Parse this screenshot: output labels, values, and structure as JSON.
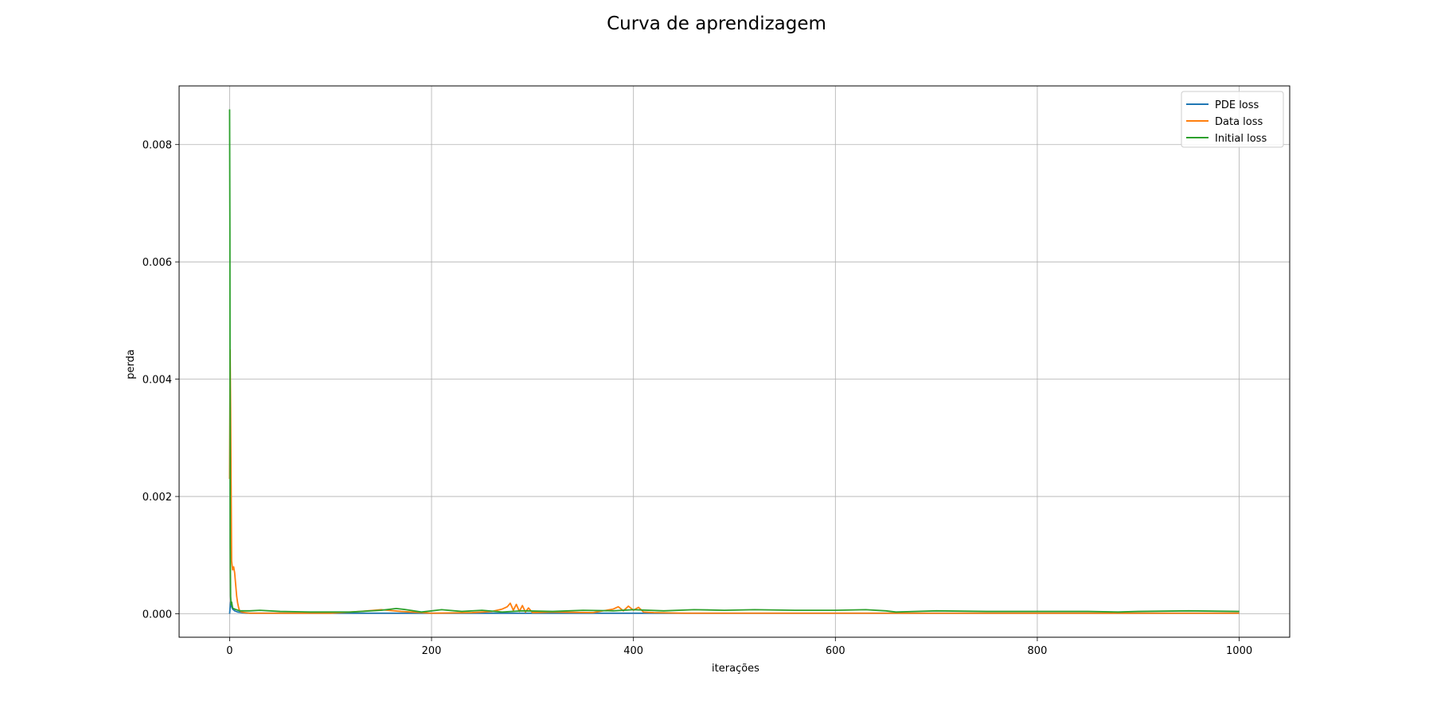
{
  "chart_data": {
    "type": "line",
    "title": "Curva de aprendizagem",
    "xlabel": "iterações",
    "ylabel": "perda",
    "xlim": [
      -50,
      1050
    ],
    "ylim": [
      -0.0004,
      0.009
    ],
    "x_ticks": [
      0,
      200,
      400,
      600,
      800,
      1000
    ],
    "y_ticks": [
      0.0,
      0.002,
      0.004,
      0.006,
      0.008
    ],
    "y_tick_labels": [
      "0.000",
      "0.002",
      "0.004",
      "0.006",
      "0.008"
    ],
    "grid": true,
    "legend_position": "top-right",
    "series": [
      {
        "name": "PDE loss",
        "color": "#1f77b4",
        "x": [
          0,
          1,
          2,
          3,
          5,
          8,
          12,
          20,
          40,
          80,
          120,
          160,
          200,
          240,
          280,
          320,
          360,
          400,
          450,
          500,
          550,
          600,
          650,
          700,
          750,
          800,
          850,
          900,
          950,
          1000
        ],
        "y": [
          0.0,
          0.0002,
          0.00012,
          8e-05,
          5e-05,
          3e-05,
          2e-05,
          1e-05,
          1e-05,
          1e-05,
          1e-05,
          1e-05,
          1e-05,
          1e-05,
          1e-05,
          1e-05,
          1e-05,
          1e-05,
          1e-05,
          1e-05,
          1e-05,
          1e-05,
          1e-05,
          1e-05,
          1e-05,
          1e-05,
          1e-05,
          1e-05,
          1e-05,
          1e-05
        ]
      },
      {
        "name": "Data loss",
        "color": "#ff7f0e",
        "x": [
          0,
          0.5,
          1,
          1.5,
          2,
          3,
          4,
          5,
          6,
          7,
          8,
          9,
          10,
          12,
          15,
          20,
          30,
          50,
          100,
          130,
          150,
          170,
          200,
          240,
          260,
          270,
          275,
          278,
          281,
          284,
          287,
          290,
          293,
          296,
          300,
          320,
          360,
          380,
          385,
          390,
          395,
          400,
          405,
          410,
          420,
          450,
          500,
          600,
          700,
          800,
          900,
          1000
        ],
        "y": [
          0.0023,
          0.0045,
          0.0035,
          0.0022,
          0.0009,
          0.00075,
          0.0008,
          0.0007,
          0.0005,
          0.0003,
          0.00018,
          0.0001,
          5e-05,
          3e-05,
          2e-05,
          1e-05,
          1e-05,
          1e-05,
          1e-05,
          4e-05,
          7e-05,
          4e-05,
          1e-05,
          2e-05,
          4e-05,
          8e-05,
          0.00012,
          0.00018,
          6e-05,
          0.00016,
          4e-05,
          0.00014,
          3e-05,
          0.0001,
          2e-05,
          3e-05,
          2e-05,
          8e-05,
          0.00012,
          5e-05,
          0.00013,
          6e-05,
          0.00011,
          3e-05,
          2e-05,
          1e-05,
          1e-05,
          1e-05,
          1e-05,
          1e-05,
          1e-05,
          1e-05
        ]
      },
      {
        "name": "Initial loss",
        "color": "#2ca02c",
        "x": [
          0,
          0.3,
          0.6,
          1,
          1.5,
          2,
          3,
          5,
          10,
          20,
          30,
          50,
          80,
          120,
          150,
          165,
          175,
          190,
          210,
          230,
          250,
          270,
          290,
          320,
          350,
          380,
          400,
          430,
          460,
          490,
          520,
          560,
          600,
          630,
          650,
          660,
          700,
          750,
          800,
          850,
          880,
          900,
          950,
          1000
        ],
        "y": [
          0.0086,
          0.0065,
          0.0012,
          0.0003,
          0.00015,
          0.0002,
          0.0001,
          8e-05,
          5e-05,
          5e-05,
          6e-05,
          4e-05,
          3e-05,
          3e-05,
          6e-05,
          9e-05,
          7e-05,
          3e-05,
          7e-05,
          4e-05,
          6e-05,
          3e-05,
          5e-05,
          4e-05,
          6e-05,
          5e-05,
          7e-05,
          5e-05,
          7e-05,
          6e-05,
          7e-05,
          6e-05,
          6e-05,
          7e-05,
          5e-05,
          3e-05,
          5e-05,
          4e-05,
          4e-05,
          4e-05,
          3e-05,
          4e-05,
          5e-05,
          4e-05
        ]
      }
    ]
  }
}
